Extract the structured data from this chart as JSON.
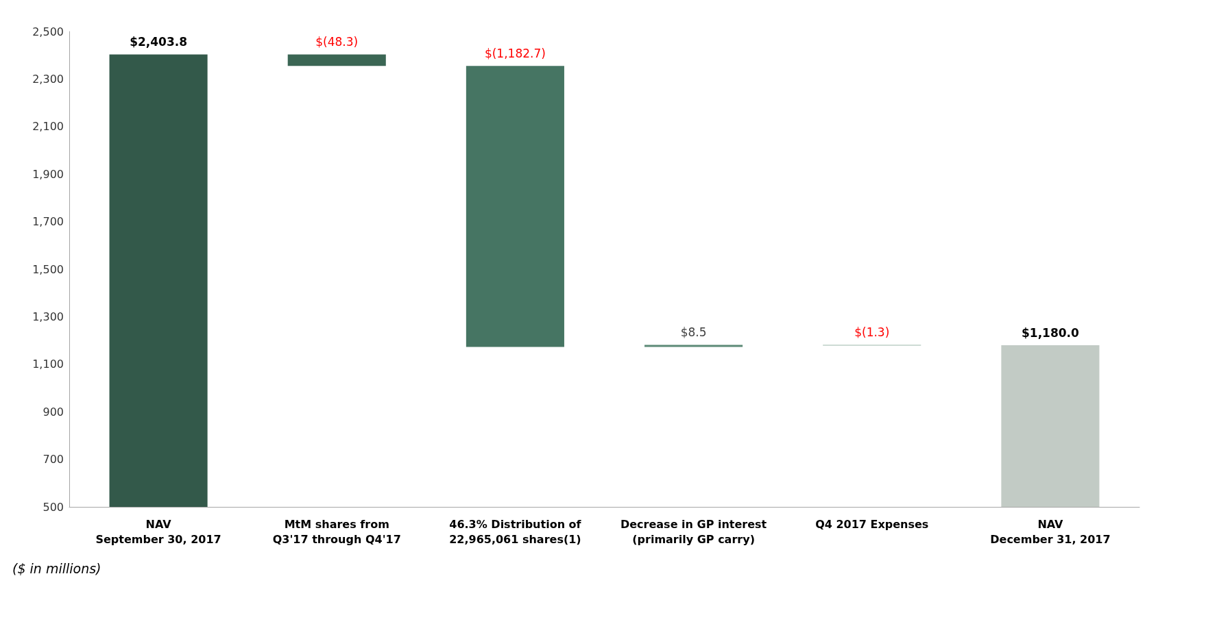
{
  "chart_data": {
    "type": "bar",
    "categories": [
      "NAV\nSeptember 30, 2017",
      "MtM shares from\nQ3'17 through Q4'17",
      "46.3% Distribution of\n22,965,061 shares(1)",
      "Decrease in GP interest\n(primarily GP carry)",
      "Q4 2017 Expenses",
      "NAV\nDecember 31, 2017"
    ],
    "values": [
      2403.8,
      -48.3,
      -1182.7,
      8.5,
      -1.3,
      1180.0
    ],
    "base": [
      null,
      2403.8,
      2355.5,
      1172.8,
      1181.3,
      null
    ],
    "colors": [
      "#33594a",
      "#3b6654",
      "#467563",
      "#5c8a77",
      "#9bb8aa",
      "#c2cbc5"
    ],
    "value_labels": [
      "$2,403.8",
      "$(48.3)",
      "$(1,182.7)",
      "$8.5",
      "$(1.3)",
      "$1,180.0"
    ],
    "ylim": [
      500,
      2500
    ],
    "yticks": [
      500,
      700,
      900,
      {
        "value": 1100,
        "label": "1,100"
      },
      {
        "value": 1300,
        "label": "1,300"
      },
      {
        "value": 1500,
        "label": "1,500"
      },
      {
        "value": 1700,
        "label": "1,700"
      },
      {
        "value": 1900,
        "label": "1,900"
      },
      {
        "value": 2100,
        "label": "2,100"
      },
      {
        "value": 2300,
        "label": "2,300"
      },
      {
        "value": 2500,
        "label": "2,500"
      }
    ],
    "grid": false,
    "annotations": [
      "($ in millions)"
    ]
  }
}
